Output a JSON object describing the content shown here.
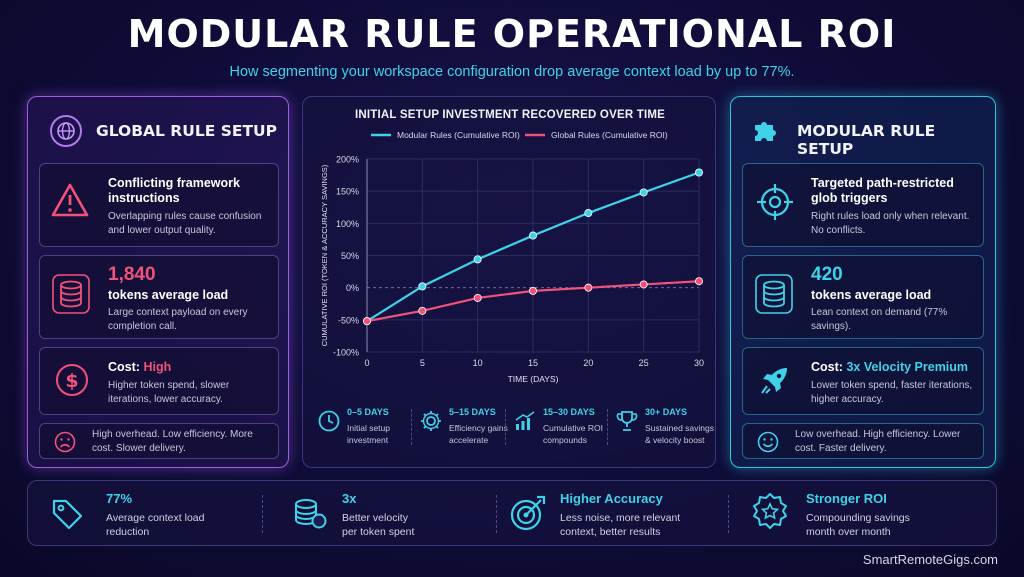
{
  "title": "MODULAR RULE OPERATIONAL ROI",
  "subtitle": "How segmenting your workspace configuration drop average context load by up to 77%.",
  "left_panel": {
    "title": "GLOBAL RULE SETUP",
    "icon": "globe-icon",
    "card1": {
      "title": "Conflicting framework instructions",
      "text": "Overlapping rules cause confusion and lower output quality."
    },
    "card2": {
      "value": "1,840",
      "title": "tokens average load",
      "text": "Large context payload on every completion call."
    },
    "card3": {
      "label": "Cost:",
      "value": "High",
      "text": "Higher token spend, slower iterations, lower accuracy."
    },
    "card4": {
      "text": "High overhead. Low efficiency. More cost. Slower delivery."
    }
  },
  "right_panel": {
    "title": "MODULAR RULE SETUP",
    "icon": "puzzle-icon",
    "card1": {
      "title": "Targeted path-restricted glob triggers",
      "text": "Right rules load only when relevant. No conflicts."
    },
    "card2": {
      "value": "420",
      "title": "tokens average load",
      "text": "Lean context on demand (77% savings)."
    },
    "card3": {
      "label": "Cost:",
      "value": "3x Velocity Premium",
      "text": "Lower token spend, faster iterations, higher accuracy."
    },
    "card4": {
      "text": "Low overhead. High efficiency. Lower cost. Faster delivery."
    }
  },
  "chart_data": {
    "type": "line",
    "title": "INITIAL SETUP INVESTMENT RECOVERED OVER TIME",
    "xlabel": "TIME (DAYS)",
    "ylabel": "CUMULATIVE ROI (TOKEN & ACCURACY SAVINGS)",
    "x_ticks": [
      0,
      5,
      10,
      15,
      20,
      25,
      30
    ],
    "y_ticks": [
      "200%",
      "150%",
      "100%",
      "50%",
      "0%",
      "-50%",
      "-100%"
    ],
    "xlim": [
      0,
      30
    ],
    "ylim": [
      -100,
      200
    ],
    "legend_position": "top",
    "series": [
      {
        "name": "Modular Rules (Cumulative ROI)",
        "color": "#3fd2e8",
        "x": [
          0,
          5,
          10,
          15,
          20,
          25,
          30
        ],
        "y": [
          -52,
          2,
          44,
          81,
          116,
          148,
          179
        ]
      },
      {
        "name": "Global Rules (Cumulative ROI)",
        "color": "#f0527a",
        "x": [
          0,
          5,
          10,
          15,
          20,
          25,
          30
        ],
        "y": [
          -52,
          -36,
          -16,
          -5,
          0,
          5,
          10
        ]
      }
    ]
  },
  "phases": [
    {
      "title": "0–5 DAYS",
      "text1": "Initial setup",
      "text2": "investment",
      "icon": "clock-icon"
    },
    {
      "title": "5–15 DAYS",
      "text1": "Efficiency gains",
      "text2": "accelerate",
      "icon": "gear-icon"
    },
    {
      "title": "15–30 DAYS",
      "text1": "Cumulative ROI",
      "text2": "compounds",
      "icon": "trend-up-icon"
    },
    {
      "title": "30+ DAYS",
      "text1": "Sustained savings",
      "text2": "& velocity boost",
      "icon": "trophy-icon"
    }
  ],
  "bottom": [
    {
      "title": "77%",
      "text1": "Average context load",
      "text2": "reduction",
      "icon": "tag-icon"
    },
    {
      "title": "3x",
      "text1": "Better velocity",
      "text2": "per token spent",
      "icon": "coins-icon"
    },
    {
      "title": "Higher Accuracy",
      "text1": "Less noise, more relevant",
      "text2": "context, better results",
      "icon": "target-icon"
    },
    {
      "title": "Stronger ROI",
      "text1": "Compounding savings",
      "text2": "month over month",
      "icon": "medal-icon"
    }
  ],
  "footer": "SmartRemoteGigs.com"
}
